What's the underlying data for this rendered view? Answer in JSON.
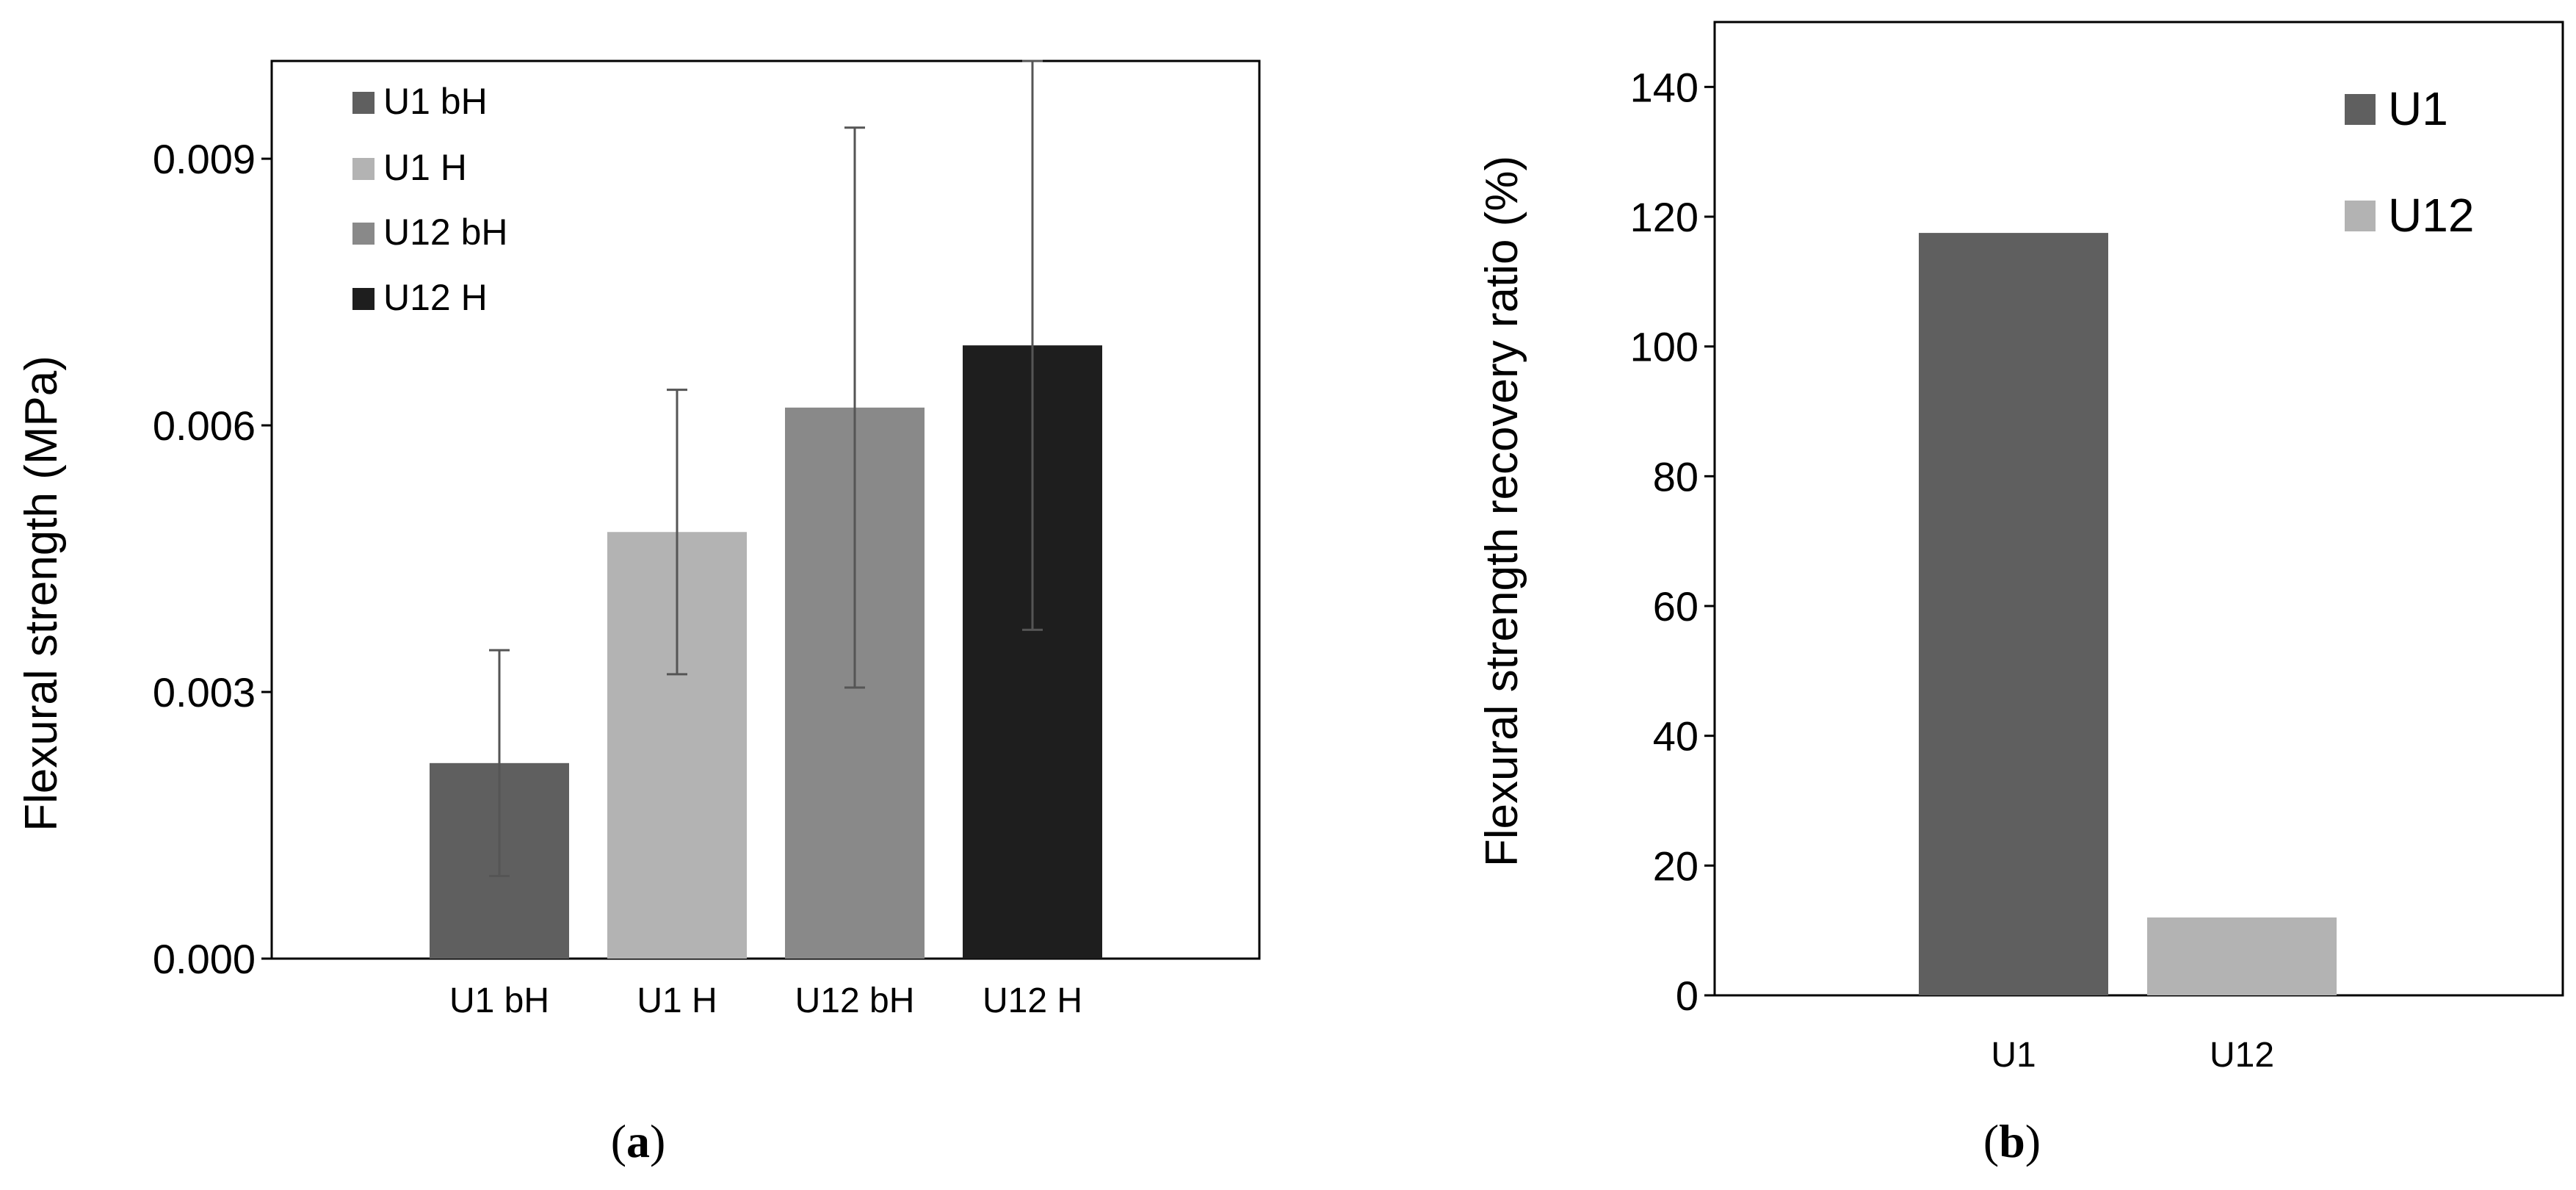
{
  "chart_data": [
    {
      "type": "bar",
      "caption": {
        "open": "(",
        "letter": "a",
        "close": ")"
      },
      "ylabel": "Flexural strength (MPa)",
      "categories": [
        "U1 bH",
        "U1 H",
        "U12 bH",
        "U12 H"
      ],
      "values": [
        0.0022,
        0.0048,
        0.0062,
        0.0069
      ],
      "error": [
        0.00127,
        0.0016,
        0.00315,
        0.0032
      ],
      "colors": [
        "#5f5f5f",
        "#b3b3b3",
        "#898989",
        "#1e1e1e"
      ],
      "legend": [
        "U1 bH",
        "U1 H",
        "U12 bH",
        "U12 H"
      ],
      "legend_position": "top-left",
      "yticks": [
        "0.000",
        "0.003",
        "0.006",
        "0.009"
      ],
      "ylim": [
        0,
        0.0101
      ],
      "grid": false
    },
    {
      "type": "bar",
      "caption": {
        "open": "(",
        "letter": "b",
        "close": ")"
      },
      "ylabel": "Flexural strength recovery ratio (%)",
      "categories": [
        "U1",
        "U12"
      ],
      "values": [
        117.5,
        12
      ],
      "colors": [
        "#5f5f5f",
        "#b3b3b3"
      ],
      "legend": [
        "U1",
        "U12"
      ],
      "legend_position": "top-right",
      "yticks": [
        "0",
        "20",
        "40",
        "60",
        "80",
        "100",
        "120",
        "140"
      ],
      "ylim": [
        0,
        150
      ],
      "grid": false
    }
  ]
}
